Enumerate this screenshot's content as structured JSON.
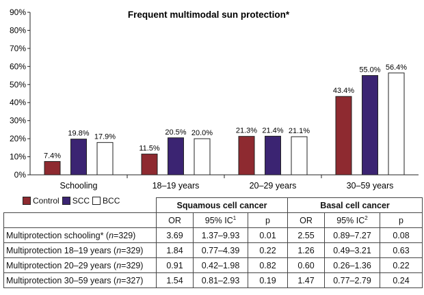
{
  "chart_data": {
    "type": "bar",
    "title": "Frequent multimodal sun protection*",
    "categories": [
      "Schooling",
      "18–19 years",
      "20–29 years",
      "30–59 years"
    ],
    "series": [
      {
        "name": "Control",
        "color": "#8e2a30",
        "values": [
          7.4,
          11.5,
          21.3,
          43.4
        ],
        "labels": [
          "7.4%",
          "11.5%",
          "21.3%",
          "43.4%"
        ]
      },
      {
        "name": "SCC",
        "color": "#3b2472",
        "values": [
          19.8,
          20.5,
          21.4,
          55.0
        ],
        "labels": [
          "19.8%",
          "20.5%",
          "21.4%",
          "55.0%"
        ]
      },
      {
        "name": "BCC",
        "color": "#ffffff",
        "values": [
          17.9,
          20.0,
          21.1,
          56.4
        ],
        "labels": [
          "17.9%",
          "20.0%",
          "21.1%",
          "56.4%"
        ]
      }
    ],
    "ylim": [
      0,
      90
    ],
    "yticks": [
      "0%",
      "10%",
      "20%",
      "30%",
      "40%",
      "50%",
      "60%",
      "70%",
      "80%",
      "90%"
    ],
    "grid": false,
    "legend_position": "bottom-left"
  },
  "table": {
    "group_headers": [
      "Squamous cell cancer",
      "Basal cell cancer"
    ],
    "col_headers": {
      "or": "OR",
      "ci_scc": "95% IC",
      "ci_scc_sup": "1",
      "p": "p",
      "ci_bcc": "95% IC",
      "ci_bcc_sup": "2"
    },
    "rows": [
      {
        "prefix": "Multiprotection schooling* (",
        "n_label": "n",
        "n_value": "=329)",
        "scc_or": "3.69",
        "scc_ci": "1.37–9.93",
        "scc_p": "0.01",
        "bcc_or": "2.55",
        "bcc_ci": "0.89–7.27",
        "bcc_p": "0.08"
      },
      {
        "prefix": "Multiprotection 18–19 years (",
        "n_label": "n",
        "n_value": "=329)",
        "scc_or": "1.84",
        "scc_ci": "0.77–4.39",
        "scc_p": "0.22",
        "bcc_or": "1.26",
        "bcc_ci": "0.49–3.21",
        "bcc_p": "0.63"
      },
      {
        "prefix": "Multiprotection 20–29 years (",
        "n_label": "n",
        "n_value": "=329)",
        "scc_or": "0.91",
        "scc_ci": "0.42–1.98",
        "scc_p": "0.82",
        "bcc_or": "0.60",
        "bcc_ci": "0.26–1.36",
        "bcc_p": "0.22"
      },
      {
        "prefix": "Multiprotection 30–59 years (",
        "n_label": "n",
        "n_value": "=327)",
        "scc_or": "1.54",
        "scc_ci": "0.81–2.93",
        "scc_p": "0.19",
        "bcc_or": "1.47",
        "bcc_ci": "0.77–2.79",
        "bcc_p": "0.24"
      }
    ]
  }
}
